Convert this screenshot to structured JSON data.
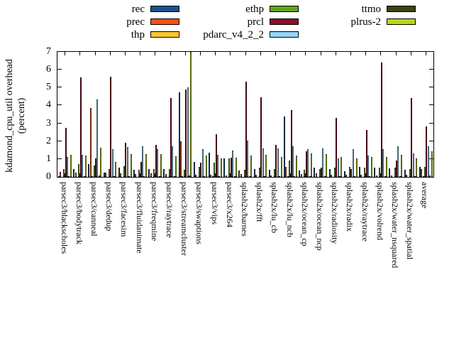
{
  "legend": {
    "items": [
      {
        "label": "rec",
        "color": "#1a5190"
      },
      {
        "label": "prec",
        "color": "#fb4e12"
      },
      {
        "label": "thp",
        "color": "#fcc632"
      },
      {
        "label": "ethp",
        "color": "#62a31e"
      },
      {
        "label": "prcl",
        "color": "#8b0e26"
      },
      {
        "label": "pdarc_v4_2_2",
        "color": "#94d3f3"
      },
      {
        "label": "ttmo",
        "color": "#3e430f"
      },
      {
        "label": "plrus-2",
        "color": "#b5d814"
      }
    ]
  },
  "axes": {
    "ylabel_line1": "kdamond_cpu_util overhead",
    "ylabel_line2": "(percent)",
    "yticks": [
      0,
      1,
      2,
      3,
      4,
      5,
      6,
      7
    ]
  },
  "chart_data": {
    "type": "bar",
    "title": "",
    "xlabel": "",
    "ylabel": "kdamond_cpu_util overhead (percent)",
    "ylim": [
      0,
      7
    ],
    "grid": false,
    "legend_position": "top",
    "categories": [
      "parsec3/blackscholes",
      "parsec3/bodytrack",
      "parsec3/canneal",
      "parsec3/dedup",
      "parsec3/facesim",
      "parsec3/fluidanimate",
      "parsec3/freqmine",
      "parsec3/raytrace",
      "parsec3/streamcluster",
      "parsec3/swaptions",
      "parsec3/vips",
      "parsec3/x264",
      "splash2x/barnes",
      "splash2x/fft",
      "splash2x/lu_cb",
      "splash2x/lu_ncb",
      "splash2x/ocean_cp",
      "splash2x/ocean_ncp",
      "splash2x/radiosity",
      "splash2x/radix",
      "splash2x/raytrace",
      "splash2x/volrend",
      "splash2x/water_nsquared",
      "splash2x/water_spatial",
      "average"
    ],
    "series": [
      {
        "name": "rec",
        "color": "#1a5190",
        "values": [
          0.05,
          0.45,
          0.7,
          0.25,
          0.5,
          0.4,
          0.42,
          0.42,
          4.75,
          0.85,
          1.35,
          1.05,
          0.37,
          0.43,
          0.38,
          3.4,
          0.37,
          0.5,
          0.45,
          0.31,
          0.55,
          0.5,
          0.48,
          0.41,
          0.57
        ]
      },
      {
        "name": "prec",
        "color": "#fb4e12",
        "values": [
          0.27,
          0.25,
          3.85,
          0.25,
          0.2,
          0.17,
          0.18,
          0.15,
          2.0,
          0.11,
          0.11,
          0.07,
          0.16,
          0.11,
          0.07,
          0.54,
          0.16,
          0.2,
          0.11,
          0.11,
          0.11,
          0.1,
          0.07,
          0.11,
          0.42
        ]
      },
      {
        "name": "thp",
        "color": "#fcc632",
        "values": [
          0.02,
          0.02,
          0.05,
          0.02,
          0.02,
          0.02,
          0.02,
          0.02,
          0.05,
          0.02,
          0.05,
          0.02,
          0.02,
          0.02,
          0.02,
          0.05,
          0.02,
          0.02,
          0.02,
          0.02,
          0.02,
          0.02,
          0.02,
          0.02,
          0.05
        ]
      },
      {
        "name": "ethp",
        "color": "#62a31e",
        "values": [
          0.45,
          0.7,
          0.62,
          0.45,
          0.58,
          0.4,
          0.42,
          0.45,
          0.38,
          0.55,
          0.8,
          1.05,
          0.41,
          0.5,
          0.45,
          0.9,
          0.41,
          0.45,
          0.5,
          0.54,
          0.5,
          0.5,
          0.5,
          0.45,
          0.55
        ]
      },
      {
        "name": "prcl",
        "color": "#8b0e26",
        "values": [
          2.75,
          5.55,
          1.05,
          5.62,
          1.92,
          0.82,
          1.8,
          4.4,
          4.88,
          0.8,
          2.4,
          1.09,
          5.35,
          4.45,
          1.8,
          3.72,
          1.45,
          0.5,
          3.3,
          0.45,
          2.62,
          6.39,
          0.91,
          4.4,
          2.82
        ]
      },
      {
        "name": "pdarc_v4_2_2",
        "color": "#94d3f3",
        "values": [
          1.1,
          1.22,
          4.32,
          1.57,
          1.68,
          1.7,
          1.56,
          1.7,
          5.03,
          1.55,
          1.25,
          1.49,
          2.04,
          1.6,
          1.6,
          1.7,
          1.55,
          1.6,
          1.05,
          1.54,
          1.2,
          1.56,
          1.73,
          1.32,
          1.73
        ]
      },
      {
        "name": "ttmo",
        "color": "#3e430f",
        "values": [
          0.05,
          0.05,
          0.1,
          0.05,
          0.05,
          0.05,
          0.05,
          0.05,
          0.1,
          0.05,
          0.05,
          0.05,
          0.05,
          0.05,
          0.05,
          0.05,
          0.05,
          0.05,
          0.05,
          0.05,
          0.05,
          0.05,
          0.05,
          0.05,
          0.07
        ]
      },
      {
        "name": "plrus-2",
        "color": "#b5d814",
        "values": [
          1.25,
          1.18,
          1.65,
          0.82,
          1.28,
          1.26,
          1.26,
          1.15,
          7.0,
          1.18,
          1.05,
          1.06,
          1.18,
          1.22,
          1.13,
          1.18,
          1.3,
          1.26,
          1.13,
          1.05,
          1.1,
          1.13,
          1.22,
          1.05,
          1.45
        ]
      }
    ]
  }
}
